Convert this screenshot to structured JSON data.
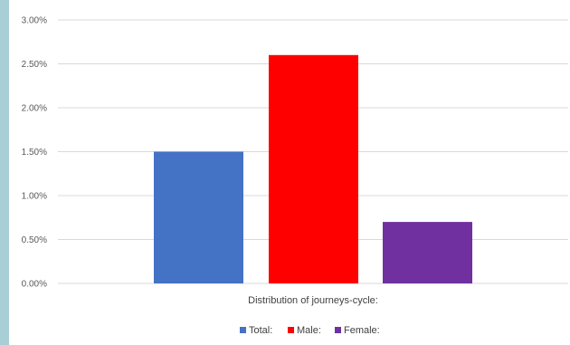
{
  "chart_data": {
    "type": "bar",
    "categories": [
      "Distribution of journeys-cycle:"
    ],
    "series": [
      {
        "name": "Total:",
        "values": [
          0.015
        ],
        "color": "#4472c4"
      },
      {
        "name": "Male:",
        "values": [
          0.026
        ],
        "color": "#ff0000"
      },
      {
        "name": "Female:",
        "values": [
          0.007
        ],
        "color": "#7030a0"
      }
    ],
    "xlabel": "Distribution of journeys-cycle:",
    "ylim": [
      0,
      0.03
    ],
    "yticks": [
      "0.00%",
      "0.50%",
      "1.00%",
      "1.50%",
      "2.00%",
      "2.50%",
      "3.00%"
    ],
    "yticks_values": [
      0,
      0.005,
      0.01,
      0.015,
      0.02,
      0.025,
      0.03
    ],
    "grid": true,
    "legend": "bottom"
  },
  "colors": {
    "side_strip": "#a9cfd6",
    "gridline": "#d9d9d9"
  }
}
